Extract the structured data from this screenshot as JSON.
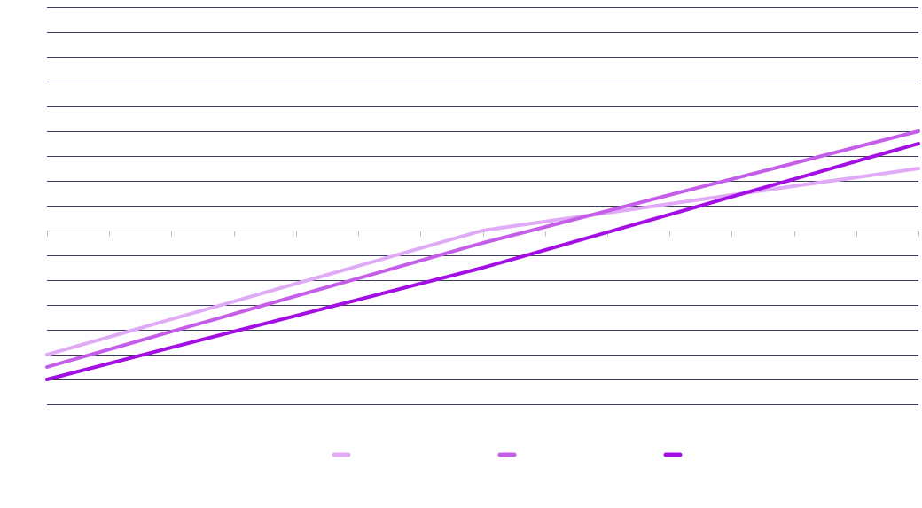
{
  "chart_data": {
    "type": "line",
    "x": [
      0,
      1,
      2,
      3,
      4,
      5,
      6,
      7,
      8,
      9,
      10,
      11,
      12,
      13,
      14
    ],
    "ylim": [
      -7,
      9
    ],
    "y_gridlines": [
      -7,
      -6,
      -5,
      -4,
      -3,
      -2,
      -1,
      1,
      2,
      3,
      4,
      5,
      6,
      7,
      8,
      9
    ],
    "grid": true,
    "legend_position": "bottom",
    "series": [
      {
        "color": "#e0aaf6",
        "values": [
          -5,
          -4.29,
          -3.57,
          -2.86,
          -2.14,
          -1.43,
          -0.71,
          0,
          0.36,
          0.71,
          1.07,
          1.43,
          1.79,
          2.14,
          2.5
        ]
      },
      {
        "color": "#c45ee8",
        "values": [
          -5.5,
          -4.79,
          -4.07,
          -3.36,
          -2.64,
          -1.93,
          -1.21,
          -0.5,
          0.14,
          0.79,
          1.43,
          2.07,
          2.71,
          3.36,
          4
        ]
      },
      {
        "color": "#a20ee4",
        "values": [
          -6,
          -5.36,
          -4.71,
          -4.07,
          -3.43,
          -2.79,
          -2.14,
          -1.5,
          -0.79,
          -0.07,
          0.64,
          1.36,
          2.07,
          2.79,
          3.5
        ]
      }
    ]
  },
  "styles": {
    "gridline_color": "#3c3c5a",
    "axis_color": "#c0c0c0",
    "background": "#ffffff"
  }
}
